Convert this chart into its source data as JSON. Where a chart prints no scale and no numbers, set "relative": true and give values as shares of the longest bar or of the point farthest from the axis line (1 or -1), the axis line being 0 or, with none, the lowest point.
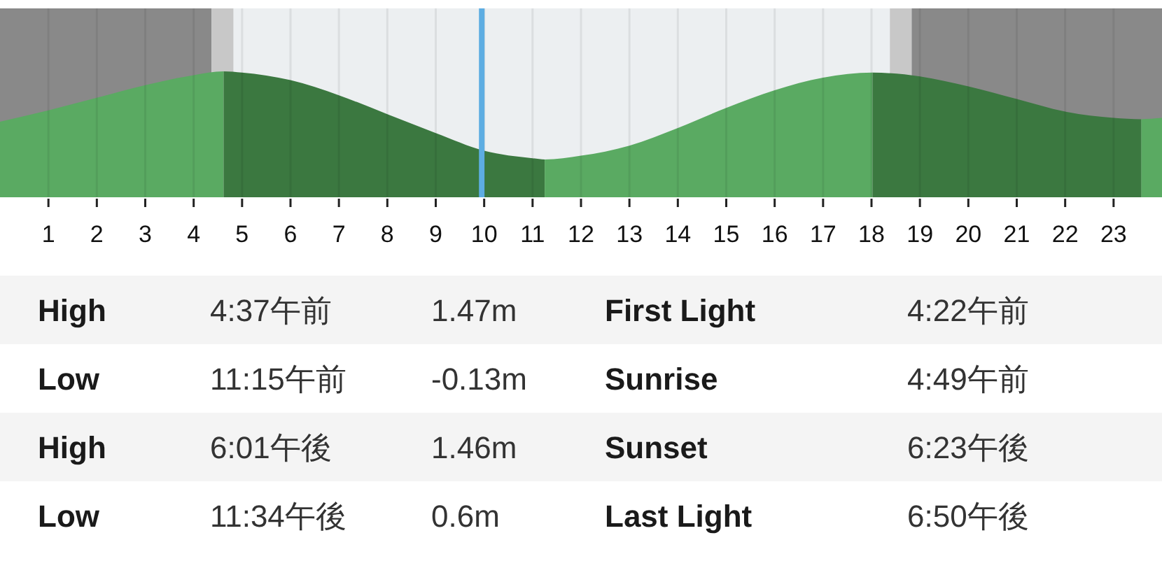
{
  "chart_data": [
    {
      "type": "area",
      "relative": true,
      "series": [
        {
          "color": "#5aaa62",
          "x": [
            0,
            1,
            2,
            3,
            4,
            4.62
          ],
          "values": [
            0.6,
            0.69,
            0.79,
            0.89,
            0.97,
            1.0
          ]
        },
        {
          "color": "#3b7840",
          "x": [
            4.62,
            5,
            6,
            7,
            8,
            9,
            10,
            11,
            11.25
          ],
          "values": [
            1.0,
            0.99,
            0.93,
            0.81,
            0.66,
            0.51,
            0.37,
            0.31,
            0.3
          ]
        },
        {
          "color": "#5aaa62",
          "x": [
            11.25,
            12,
            13,
            14,
            15,
            16,
            17,
            18.02
          ],
          "values": [
            0.3,
            0.33,
            0.41,
            0.55,
            0.71,
            0.85,
            0.95,
            0.99
          ]
        },
        {
          "color": "#3b7840",
          "x": [
            18.02,
            19,
            20,
            21,
            22,
            23,
            23.57
          ],
          "values": [
            0.99,
            0.96,
            0.88,
            0.78,
            0.68,
            0.63,
            0.62
          ]
        },
        {
          "color": "#5aaa62",
          "x": [
            23.57,
            24
          ],
          "values": [
            0.62,
            0.63
          ]
        }
      ],
      "xlim": [
        0,
        24
      ],
      "xticks": [
        1,
        2,
        3,
        4,
        5,
        6,
        7,
        8,
        9,
        10,
        11,
        12,
        13,
        14,
        15,
        16,
        17,
        18,
        19,
        20,
        21,
        22,
        23
      ],
      "grid": "x",
      "bands": [
        {
          "axis": "x",
          "from": 0,
          "to": 4.37,
          "color": "#898989"
        },
        {
          "axis": "x",
          "from": 4.37,
          "to": 4.82,
          "color": "#c8c8c8"
        },
        {
          "axis": "x",
          "from": 18.38,
          "to": 18.83,
          "color": "#c8c8c8"
        },
        {
          "axis": "x",
          "from": 18.83,
          "to": 24,
          "color": "#898989"
        }
      ],
      "ref_lines": [
        {
          "axis": "x",
          "value": 9.95,
          "color": "#5dade2"
        }
      ]
    },
    {
      "type": "other",
      "annotations": [
        "High",
        "4:37午前",
        "1.47m",
        "First Light",
        "4:22午前",
        "Low",
        "11:15午前",
        "-0.13m",
        "Sunrise",
        "4:49午前",
        "High",
        "6:01午後",
        "1.46m",
        "Sunset",
        "6:23午後",
        "Low",
        "11:34午後",
        "0.6m",
        "Last Light",
        "6:50午後"
      ]
    }
  ]
}
